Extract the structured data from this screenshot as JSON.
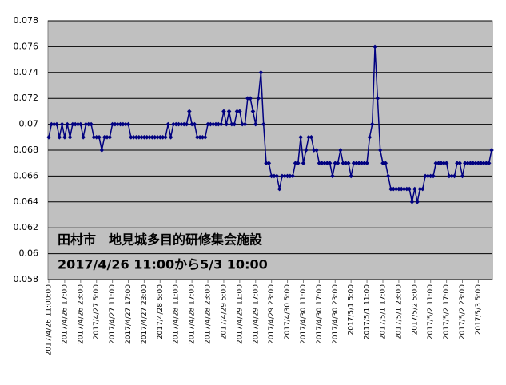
{
  "chart_data": {
    "type": "line",
    "annotations": [
      "田村市　地見城多目的研修集会施設",
      "2017/4/26  11:00から5/3 10:00"
    ],
    "categories": [
      "2017/4/26 11:00:00",
      null,
      null,
      null,
      null,
      null,
      "2017/4/26 17:00",
      null,
      null,
      null,
      null,
      null,
      "2017/4/26 23:00",
      null,
      null,
      null,
      null,
      null,
      "2017/4/27 5:00",
      null,
      null,
      null,
      null,
      null,
      "2017/4/27 11:00",
      null,
      null,
      null,
      null,
      null,
      "2017/4/27 17:00",
      null,
      null,
      null,
      null,
      null,
      "2017/4/27 23:00",
      null,
      null,
      null,
      null,
      null,
      "2017/4/28 5:00",
      null,
      null,
      null,
      null,
      null,
      "2017/4/28 11:00",
      null,
      null,
      null,
      null,
      null,
      "2017/4/28 17:00",
      null,
      null,
      null,
      null,
      null,
      "2017/4/28 23:00",
      null,
      null,
      null,
      null,
      null,
      "2017/4/29 5:00",
      null,
      null,
      null,
      null,
      null,
      "2017/4/29 11:00",
      null,
      null,
      null,
      null,
      null,
      "2017/4/29 17:00",
      null,
      null,
      null,
      null,
      null,
      "2017/4/29 23:00",
      null,
      null,
      null,
      null,
      null,
      "2017/4/30 5:00",
      null,
      null,
      null,
      null,
      null,
      "2017/4/30 11:00",
      null,
      null,
      null,
      null,
      null,
      "2017/4/30 17:00",
      null,
      null,
      null,
      null,
      null,
      "2017/4/30 23:00",
      null,
      null,
      null,
      null,
      null,
      "2017/5/1 5:00",
      null,
      null,
      null,
      null,
      null,
      "2017/5/1 11:00",
      null,
      null,
      null,
      null,
      null,
      "2017/5/1 17:00",
      null,
      null,
      null,
      null,
      null,
      "2017/5/1 23:00",
      null,
      null,
      null,
      null,
      null,
      "2017/5/2 5:00",
      null,
      null,
      null,
      null,
      null,
      "2017/5/2 11:00",
      null,
      null,
      null,
      null,
      null,
      "2017/5/2 17:00",
      null,
      null,
      null,
      null,
      null,
      "2017/5/2 23:00",
      null,
      null,
      null,
      null,
      null,
      "2017/5/3 5:00",
      null,
      null,
      null,
      null,
      null
    ],
    "series": [
      {
        "color": "#000080",
        "values": [
          0.069,
          0.07,
          0.07,
          0.07,
          0.069,
          0.07,
          0.069,
          0.07,
          0.069,
          0.07,
          0.07,
          0.07,
          0.07,
          0.069,
          0.07,
          0.07,
          0.07,
          0.069,
          0.069,
          0.069,
          0.068,
          0.069,
          0.069,
          0.069,
          0.07,
          0.07,
          0.07,
          0.07,
          0.07,
          0.07,
          0.07,
          0.069,
          0.069,
          0.069,
          0.069,
          0.069,
          0.069,
          0.069,
          0.069,
          0.069,
          0.069,
          0.069,
          0.069,
          0.069,
          0.069,
          0.07,
          0.069,
          0.07,
          0.07,
          0.07,
          0.07,
          0.07,
          0.07,
          0.071,
          0.07,
          0.07,
          0.069,
          0.069,
          0.069,
          0.069,
          0.07,
          0.07,
          0.07,
          0.07,
          0.07,
          0.07,
          0.071,
          0.07,
          0.071,
          0.07,
          0.07,
          0.071,
          0.071,
          0.07,
          0.07,
          0.072,
          0.072,
          0.071,
          0.07,
          0.072,
          0.074,
          0.07,
          0.067,
          0.067,
          0.066,
          0.066,
          0.066,
          0.065,
          0.066,
          0.066,
          0.066,
          0.066,
          0.066,
          0.067,
          0.067,
          0.069,
          0.067,
          0.068,
          0.069,
          0.069,
          0.068,
          0.068,
          0.067,
          0.067,
          0.067,
          0.067,
          0.067,
          0.066,
          0.067,
          0.067,
          0.068,
          0.067,
          0.067,
          0.067,
          0.066,
          0.067,
          0.067,
          0.067,
          0.067,
          0.067,
          0.067,
          0.069,
          0.07,
          0.076,
          0.072,
          0.068,
          0.067,
          0.067,
          0.066,
          0.065,
          0.065,
          0.065,
          0.065,
          0.065,
          0.065,
          0.065,
          0.065,
          0.064,
          0.065,
          0.064,
          0.065,
          0.065,
          0.066,
          0.066,
          0.066,
          0.066,
          0.067,
          0.067,
          0.067,
          0.067,
          0.067,
          0.066,
          0.066,
          0.066,
          0.067,
          0.067,
          0.066,
          0.067,
          0.067,
          0.067,
          0.067,
          0.067,
          0.067,
          0.067,
          0.067,
          0.067,
          0.067,
          0.068
        ]
      }
    ],
    "ylim": [
      0.058,
      0.078
    ],
    "yticks": [
      0.058,
      0.06,
      0.062,
      0.064,
      0.066,
      0.068,
      0.07,
      0.072,
      0.074,
      0.076,
      0.078
    ],
    "grid": true,
    "background": "#c0c0c0"
  }
}
